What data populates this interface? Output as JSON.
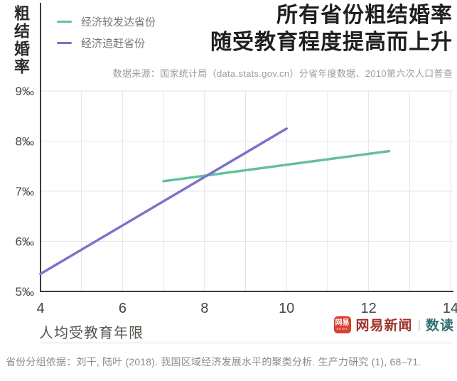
{
  "header": {
    "y_axis_label": "粗结婚率",
    "title_line1": "所有省份粗结婚率",
    "title_line2": "随受教育程度提高而上升",
    "source": "数据来源：国家统计局（data.stats.gov.cn）分省年度数据、2010第六次人口普查"
  },
  "chart_data": {
    "type": "line",
    "title": "所有省份粗结婚率随受教育程度提高而上升",
    "xlabel": "人均受教育年限",
    "ylabel": "粗结婚率",
    "xlim": [
      4,
      14
    ],
    "ylim": [
      5,
      9
    ],
    "x_tick_values": [
      4,
      6,
      8,
      10,
      12,
      14
    ],
    "x_tick_labels": [
      "4",
      "6",
      "8",
      "10",
      "12",
      "14"
    ],
    "y_tick_values": [
      5,
      6,
      7,
      8,
      9
    ],
    "y_tick_labels": [
      "5‰",
      "6‰",
      "7‰",
      "8‰",
      "9‰"
    ],
    "x_grid_step": 1,
    "grid": true,
    "grid_color": "#e5e3e8",
    "axis_color": "#3b3b3b",
    "tick_color": "#46464a",
    "legend_position": "top-left",
    "series": [
      {
        "name": "经济较发达省份",
        "color": "#63c19c",
        "points": [
          [
            7.0,
            7.2
          ],
          [
            12.5,
            7.8
          ]
        ]
      },
      {
        "name": "经济追赶省份",
        "color": "#7b74c8",
        "points": [
          [
            4.0,
            5.35
          ],
          [
            10.0,
            8.25
          ]
        ]
      }
    ]
  },
  "footer": {
    "branding": {
      "icon_text": "网易",
      "icon_subtext": "NEWS",
      "icon_color": "#d93f31",
      "news_label": "网易新闻",
      "news_color": "#9d332b",
      "separator": "|",
      "read_label": "数读",
      "read_color": "#2f6e71"
    },
    "note": "省份分组依据：刘干, 陆叶 (2018). 我国区域经济发展水平的聚类分析. 生产力研究 (1), 68–71."
  }
}
